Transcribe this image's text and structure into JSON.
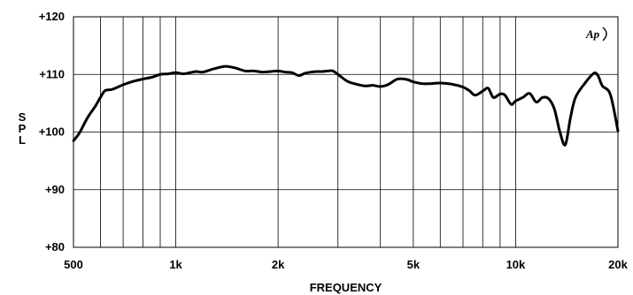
{
  "chart_data": {
    "type": "line",
    "title": "",
    "xlabel": "FREQUENCY",
    "ylabel": "SPL",
    "xscale": "log",
    "xlim": [
      500,
      20000
    ],
    "ylim": [
      80,
      120
    ],
    "grid": true,
    "logo_text": "Ap",
    "y_ticks": [
      {
        "value": 120,
        "label": "+120"
      },
      {
        "value": 110,
        "label": "+110"
      },
      {
        "value": 100,
        "label": "+100"
      },
      {
        "value": 90,
        "label": "+90"
      },
      {
        "value": 80,
        "label": "+80"
      }
    ],
    "x_ticks": [
      {
        "value": 500,
        "label": "500"
      },
      {
        "value": 1000,
        "label": "1k"
      },
      {
        "value": 2000,
        "label": "2k"
      },
      {
        "value": 5000,
        "label": "5k"
      },
      {
        "value": 10000,
        "label": "10k"
      },
      {
        "value": 20000,
        "label": "20k"
      }
    ],
    "x_grid": [
      600,
      700,
      800,
      900,
      1000,
      2000,
      3000,
      4000,
      5000,
      6000,
      7000,
      8000,
      9000,
      10000
    ],
    "series": [
      {
        "color": "#000000",
        "x": [
          500,
          520,
          550,
          580,
          600,
          620,
          650,
          700,
          750,
          800,
          850,
          900,
          950,
          1000,
          1050,
          1100,
          1150,
          1200,
          1300,
          1400,
          1500,
          1600,
          1700,
          1800,
          1900,
          2000,
          2100,
          2200,
          2300,
          2400,
          2500,
          2600,
          2700,
          2800,
          2900,
          3000,
          3200,
          3400,
          3600,
          3800,
          4000,
          4200,
          4500,
          4800,
          5000,
          5300,
          5600,
          6000,
          6500,
          7000,
          7300,
          7600,
          8000,
          8300,
          8600,
          9000,
          9300,
          9700,
          10000,
          10500,
          11000,
          11500,
          12000,
          12500,
          13000,
          13500,
          14000,
          14500,
          15000,
          16000,
          17000,
          17500,
          18000,
          19000,
          20000
        ],
        "y": [
          98.5,
          99.8,
          102.5,
          104.5,
          106.0,
          107.2,
          107.4,
          108.2,
          108.8,
          109.2,
          109.5,
          110.0,
          110.1,
          110.3,
          110.1,
          110.3,
          110.5,
          110.4,
          111.0,
          111.4,
          111.1,
          110.6,
          110.6,
          110.4,
          110.5,
          110.6,
          110.4,
          110.3,
          109.8,
          110.2,
          110.4,
          110.5,
          110.5,
          110.6,
          110.6,
          110.0,
          108.8,
          108.3,
          108.0,
          108.1,
          107.9,
          108.2,
          109.2,
          109.1,
          108.7,
          108.4,
          108.4,
          108.5,
          108.3,
          107.8,
          107.2,
          106.4,
          107.1,
          107.6,
          106.0,
          106.6,
          106.4,
          104.8,
          105.4,
          106.0,
          106.7,
          105.2,
          106.0,
          105.8,
          104.0,
          100.0,
          97.8,
          102.5,
          106.0,
          108.5,
          110.2,
          109.7,
          108.0,
          106.5,
          100.2
        ]
      }
    ]
  }
}
